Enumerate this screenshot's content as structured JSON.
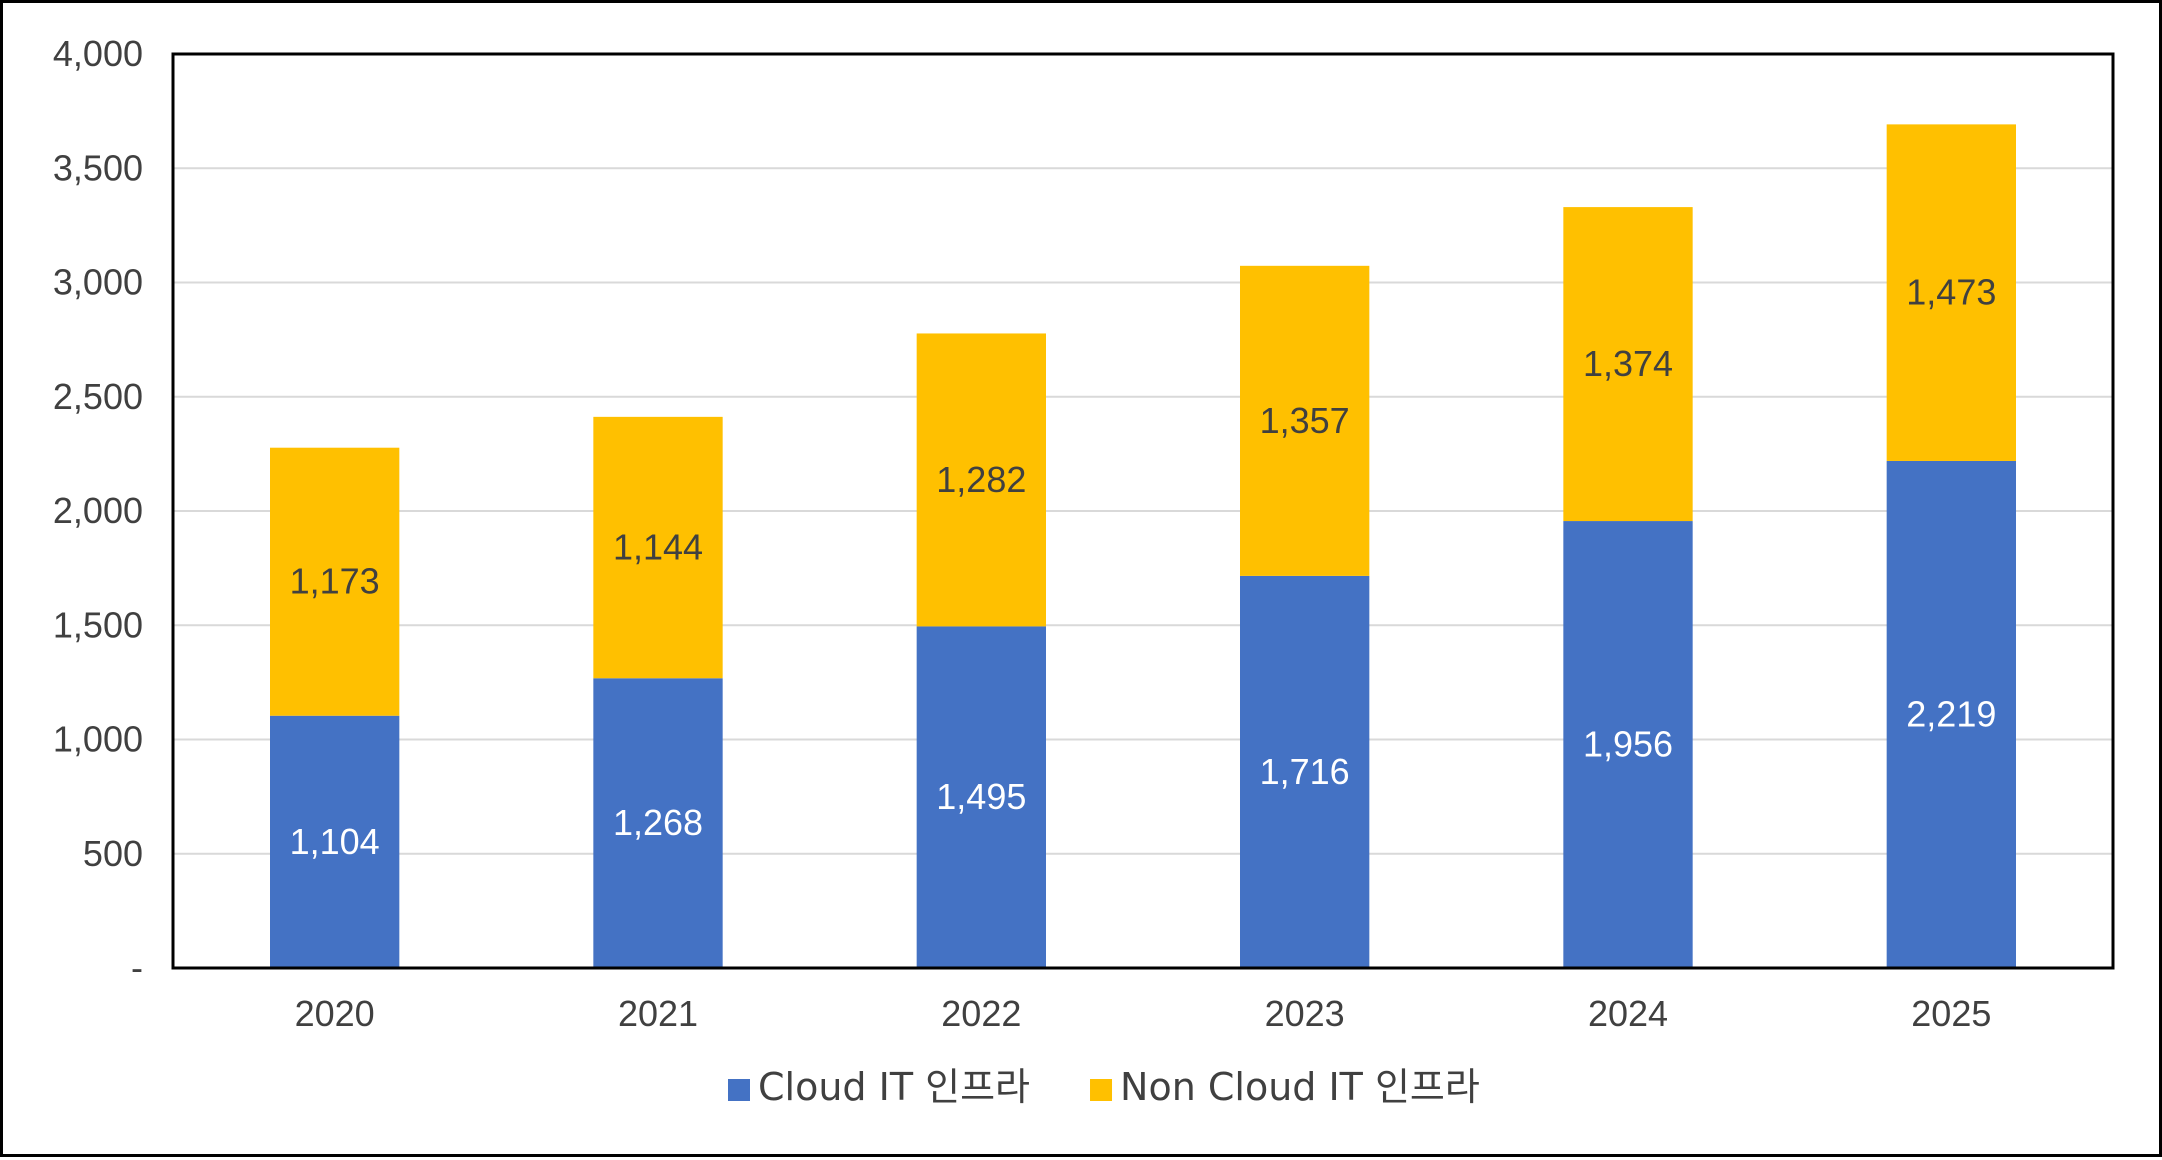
{
  "chart_data": {
    "type": "bar",
    "stacked": true,
    "title": "",
    "xlabel": "",
    "ylabel": "",
    "categories": [
      "2020",
      "2021",
      "2022",
      "2023",
      "2024",
      "2025"
    ],
    "series": [
      {
        "name": "Cloud IT 인프라",
        "color": "#4472C4",
        "label_color": "#ffffff",
        "values": [
          1104,
          1268,
          1495,
          1716,
          1956,
          2219
        ]
      },
      {
        "name": "Non Cloud IT 인프라",
        "color": "#FFC000",
        "label_color": "#404040",
        "values": [
          1173,
          1144,
          1282,
          1357,
          1374,
          1473
        ]
      }
    ],
    "ylim": [
      0,
      4000
    ],
    "yticks": [
      0,
      500,
      1000,
      1500,
      2000,
      2500,
      3000,
      3500,
      4000
    ],
    "ytick_labels": [
      "-",
      "500",
      "1,000",
      "1,500",
      "2,000",
      "2,500",
      "3,000",
      "3,500",
      "4,000"
    ],
    "grid": true,
    "legend_position": "bottom"
  }
}
